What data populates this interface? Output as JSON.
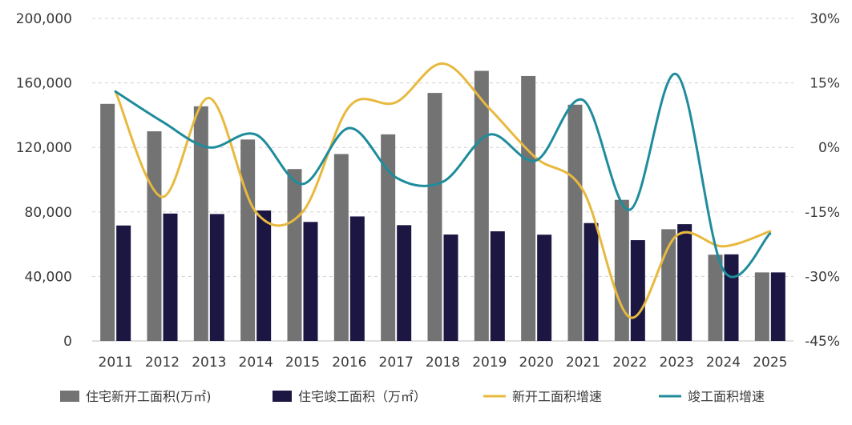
{
  "chart_data": {
    "type": "bar",
    "title": "",
    "xlabel": "",
    "ylabel": "",
    "ylabel_right": "",
    "categories": [
      "2011",
      "2012",
      "2013",
      "2014",
      "2015",
      "2016",
      "2017",
      "2018",
      "2019",
      "2020",
      "2021",
      "2022",
      "2023",
      "2024",
      "2025"
    ],
    "ylim": [
      0,
      200000
    ],
    "ylim_right": [
      -45,
      30
    ],
    "y_ticks": [
      "0",
      "40,000",
      "80,000",
      "120,000",
      "160,000",
      "200,000"
    ],
    "y_ticks_right": [
      "-45%",
      "-30%",
      "-15%",
      "0%",
      "15%",
      "30%"
    ],
    "grid": true,
    "legend_position": "bottom",
    "series": [
      {
        "name": "住宅新开工面积(万㎡)",
        "type": "bar",
        "axis": "left",
        "color": "#737373",
        "values": [
          147000,
          130000,
          145500,
          124900,
          106600,
          115900,
          128100,
          153800,
          167500,
          164300,
          146500,
          87500,
          69300,
          53500,
          42500
        ]
      },
      {
        "name": "住宅竣工面积（万㎡）",
        "type": "bar",
        "axis": "left",
        "color": "#1c1742",
        "values": [
          71600,
          79000,
          78700,
          80900,
          73800,
          77200,
          71800,
          66000,
          68000,
          65900,
          73100,
          62500,
          72400,
          53700,
          42500
        ]
      },
      {
        "name": "新开工面积增速",
        "type": "line",
        "axis": "right",
        "color": "#e8b93f",
        "values": [
          13.0,
          -11.5,
          11.5,
          -15.0,
          -15.0,
          9.5,
          10.5,
          19.5,
          9.0,
          -2.5,
          -10.0,
          -39.5,
          -20.5,
          -23.0,
          -19.5
        ]
      },
      {
        "name": "竣工面积增速",
        "type": "line",
        "axis": "right",
        "color": "#1f8c9c",
        "values": [
          13.0,
          6.0,
          0.0,
          3.0,
          -8.5,
          4.5,
          -7.0,
          -8.0,
          3.0,
          -3.0,
          11.0,
          -14.5,
          17.0,
          -28.5,
          -20.0
        ]
      }
    ]
  }
}
